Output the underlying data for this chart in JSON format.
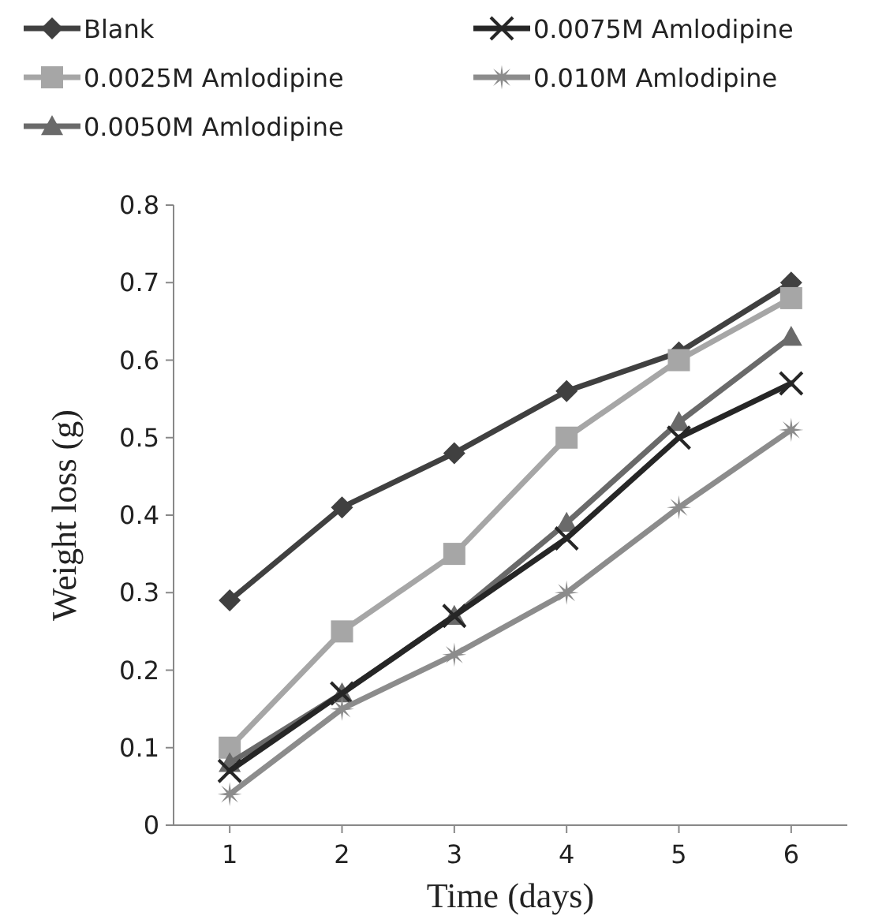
{
  "chart_data": {
    "type": "line",
    "xlabel": "Time (days)",
    "ylabel": "Weight loss (g)",
    "categories": [
      "1",
      "2",
      "3",
      "4",
      "5",
      "6"
    ],
    "ylim": [
      0,
      0.8
    ],
    "yticks": [
      0,
      0.1,
      0.2,
      0.3,
      0.4,
      0.5,
      0.6,
      0.7,
      0.8
    ],
    "grid": false,
    "legend": "top",
    "line_style": "solid",
    "series": [
      {
        "name": "Blank",
        "color": "#404040",
        "marker": "diamond",
        "values": [
          0.29,
          0.41,
          0.48,
          0.56,
          0.61,
          0.7
        ]
      },
      {
        "name": "0.0025M Amlodipine",
        "color": "#a6a6a6",
        "marker": "square",
        "values": [
          0.1,
          0.25,
          0.35,
          0.5,
          0.6,
          0.68
        ]
      },
      {
        "name": "0.0050M Amlodipine",
        "color": "#6a6a6a",
        "marker": "triangle",
        "values": [
          0.08,
          0.17,
          0.27,
          0.39,
          0.52,
          0.63
        ]
      },
      {
        "name": "0.0075M Amlodipine",
        "color": "#262626",
        "marker": "cross",
        "values": [
          0.07,
          0.17,
          0.27,
          0.37,
          0.5,
          0.57
        ]
      },
      {
        "name": "0.010M Amlodipine",
        "color": "#8c8c8c",
        "marker": "star",
        "values": [
          0.04,
          0.15,
          0.22,
          0.3,
          0.41,
          0.51
        ]
      }
    ]
  }
}
